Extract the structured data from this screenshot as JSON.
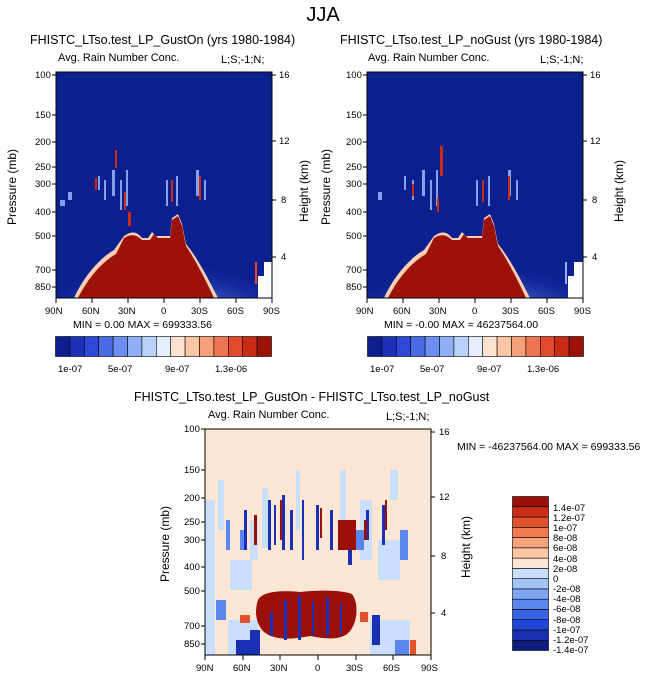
{
  "page_title": "JJA",
  "colors": {
    "cb_rain": [
      "#0b1f8f",
      "#1d2fb8",
      "#2e49d9",
      "#4a6ae6",
      "#6b8ef0",
      "#8fb0f6",
      "#b9d2fb",
      "#e4eefc",
      "#fde3cf",
      "#fbc6a5",
      "#f6a07a",
      "#ef7552",
      "#e24a2e",
      "#c82c17",
      "#9c1209"
    ],
    "cb_diff": [
      "#0e1e80",
      "#1930b5",
      "#2345d6",
      "#3762e6",
      "#5a86ee",
      "#7fa6f4",
      "#a4c4f8",
      "#cadffb",
      "#fde6d4",
      "#fbc8a7",
      "#f7a47c",
      "#f07a50",
      "#e3502c",
      "#c92d18",
      "#9a0f08"
    ]
  },
  "chart_data": [
    {
      "type": "heatmap",
      "title": "FHISTC_LTso.test_LP_GustOn (yrs 1980-1984)",
      "subtitle_left": "Avg. Rain Number Conc.",
      "subtitle_right": "L;S;-1;N;",
      "xlabel": "",
      "x_ticks": [
        "90N",
        "60N",
        "30N",
        "0",
        "30S",
        "60S",
        "90S"
      ],
      "ylabel": "Pressure (mb)",
      "y_ticks": [
        "100",
        "150",
        "200",
        "250",
        "300",
        "400",
        "500",
        "700",
        "850"
      ],
      "ylabel_right": "Height (km)",
      "y_ticks_right": [
        "16",
        "12",
        "8",
        "4"
      ],
      "stats": "MIN =  0.00  MAX = 699333.56",
      "colorbar_labels": [
        "1e-07",
        "5e-07",
        "9e-07",
        "1.3e-06"
      ],
      "colorbar_orientation": "horizontal"
    },
    {
      "type": "heatmap",
      "title": "FHISTC_LTso.test_LP_noGust (yrs 1980-1984)",
      "subtitle_left": "Avg. Rain Number Conc.",
      "subtitle_right": "L;S;-1;N;",
      "xlabel": "",
      "x_ticks": [
        "90N",
        "60N",
        "30N",
        "0",
        "30S",
        "60S",
        "90S"
      ],
      "ylabel": "Pressure (mb)",
      "y_ticks": [
        "100",
        "150",
        "200",
        "250",
        "300",
        "400",
        "500",
        "700",
        "850"
      ],
      "ylabel_right": "Height (km)",
      "y_ticks_right": [
        "16",
        "12",
        "8",
        "4"
      ],
      "stats": "MIN = -0.00  MAX = 46237564.00",
      "colorbar_labels": [
        "1e-07",
        "5e-07",
        "9e-07",
        "1.3e-06"
      ],
      "colorbar_orientation": "horizontal"
    },
    {
      "type": "heatmap",
      "title": "FHISTC_LTso.test_LP_GustOn - FHISTC_LTso.test_LP_noGust",
      "subtitle_left": "Avg. Rain Number Conc.",
      "subtitle_right": "L;S;-1;N;",
      "xlabel": "",
      "x_ticks": [
        "90N",
        "60N",
        "30N",
        "0",
        "30S",
        "60S",
        "90S"
      ],
      "ylabel": "Pressure (mb)",
      "y_ticks": [
        "100",
        "150",
        "200",
        "250",
        "300",
        "400",
        "500",
        "700",
        "850"
      ],
      "ylabel_right": "Height (km)",
      "y_ticks_right": [
        "16",
        "12",
        "8",
        "4"
      ],
      "stats": "MIN = -46237564.00  MAX = 699333.56",
      "colorbar_labels": [
        "1.4e-07",
        "1.2e-07",
        "1e-07",
        "8e-08",
        "6e-08",
        "4e-08",
        "2e-08",
        "0",
        "-2e-08",
        "-4e-08",
        "-6e-08",
        "-8e-08",
        "-1e-07",
        "-1.2e-07",
        "-1.4e-07"
      ],
      "colorbar_orientation": "vertical"
    }
  ]
}
